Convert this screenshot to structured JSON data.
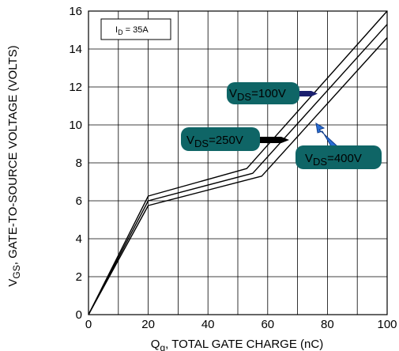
{
  "chart_data": {
    "type": "line",
    "title": "",
    "xlabel": {
      "main": "Q",
      "sub": "g",
      "rest": ", TOTAL GATE CHARGE (nC)"
    },
    "ylabel": {
      "main": "V",
      "sub": "GS",
      "rest": ", GATE-TO-SOURCE VOLTAGE (VOLTS)"
    },
    "xlim": [
      0,
      100
    ],
    "ylim": [
      0,
      16
    ],
    "xticks": [
      0,
      20,
      40,
      60,
      80,
      100
    ],
    "yticks": [
      0,
      2,
      4,
      6,
      8,
      10,
      12,
      14,
      16
    ],
    "x_grid_step": 10,
    "y_grid_step": 2,
    "grid": true,
    "annotation": {
      "main": "I",
      "sub": "D",
      "rest": " = 35A"
    },
    "series": [
      {
        "name": "VDS=100V",
        "points": [
          [
            0,
            0
          ],
          [
            20,
            6.25
          ],
          [
            53,
            7.7
          ],
          [
            100,
            16.0
          ]
        ]
      },
      {
        "name": "VDS=250V",
        "points": [
          [
            0,
            0
          ],
          [
            20,
            6.0
          ],
          [
            55,
            7.45
          ],
          [
            100,
            15.3
          ]
        ]
      },
      {
        "name": "VDS=400V",
        "points": [
          [
            0,
            0
          ],
          [
            20,
            5.75
          ],
          [
            58,
            7.3
          ],
          [
            100,
            14.6
          ]
        ]
      }
    ],
    "callouts": [
      {
        "main": "V",
        "sub": "DS",
        "rest": "=100V",
        "box_color": "#0f6566",
        "arrow_color": "#1a1f6e"
      },
      {
        "main": "V",
        "sub": "DS",
        "rest": "=250V",
        "box_color": "#0f6566",
        "arrow_color": "#000000"
      },
      {
        "main": "V",
        "sub": "DS",
        "rest": "=400V",
        "box_color": "#0f6566",
        "arrow_color": "#2a6fd6"
      }
    ]
  }
}
